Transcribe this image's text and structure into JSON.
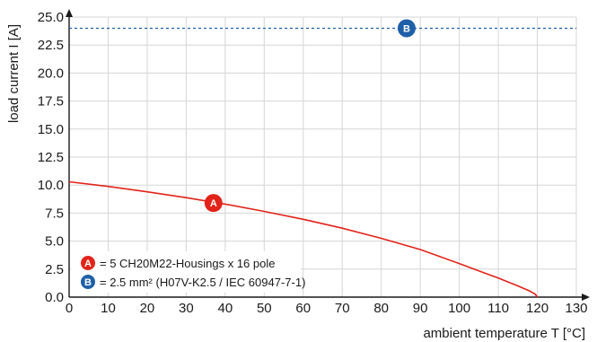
{
  "chart_data": {
    "type": "line",
    "xlabel": "ambient temperature T [°C]",
    "ylabel": "load current I [A]",
    "xlim": [
      0,
      130
    ],
    "ylim": [
      0,
      25
    ],
    "x_ticks": [
      0,
      10,
      20,
      30,
      40,
      50,
      60,
      70,
      80,
      90,
      100,
      110,
      120,
      130
    ],
    "y_ticks": [
      "0.0",
      "2.5",
      "5.0",
      "7.5",
      "10.0",
      "12.5",
      "15.0",
      "17.5",
      "20.0",
      "22.5",
      "25.0"
    ],
    "grid": true,
    "legend_position": "bottom-left",
    "series": [
      {
        "marker": "A",
        "color": "#e2231a",
        "style": "solid",
        "x": [
          0,
          10,
          20,
          30,
          40,
          50,
          60,
          70,
          80,
          90,
          100,
          105,
          110,
          115,
          118,
          119.5,
          120
        ],
        "y": [
          10.3,
          9.88,
          9.4,
          8.88,
          8.3,
          7.65,
          6.95,
          6.15,
          5.25,
          4.25,
          3.0,
          2.35,
          1.7,
          1.0,
          0.55,
          0.25,
          0.0
        ]
      },
      {
        "marker": "B",
        "color": "#1f5fa8",
        "style": "dashed",
        "x": [
          0,
          130
        ],
        "y": [
          24.0,
          24.0
        ]
      }
    ],
    "markers": [
      {
        "label": "A",
        "x": 37,
        "y": 8.4,
        "color": "#e2231a"
      },
      {
        "label": "B",
        "x": 86.5,
        "y": 24.0,
        "color": "#1f5fa8"
      }
    ],
    "legend": [
      {
        "marker": "A",
        "color": "#e2231a",
        "text": "= 5 CH20M22-Housings x 16 pole"
      },
      {
        "marker": "B",
        "color": "#1f5fa8",
        "text": "= 2.5 mm² (H07V-K2.5 / IEC 60947-7-1)"
      }
    ]
  }
}
